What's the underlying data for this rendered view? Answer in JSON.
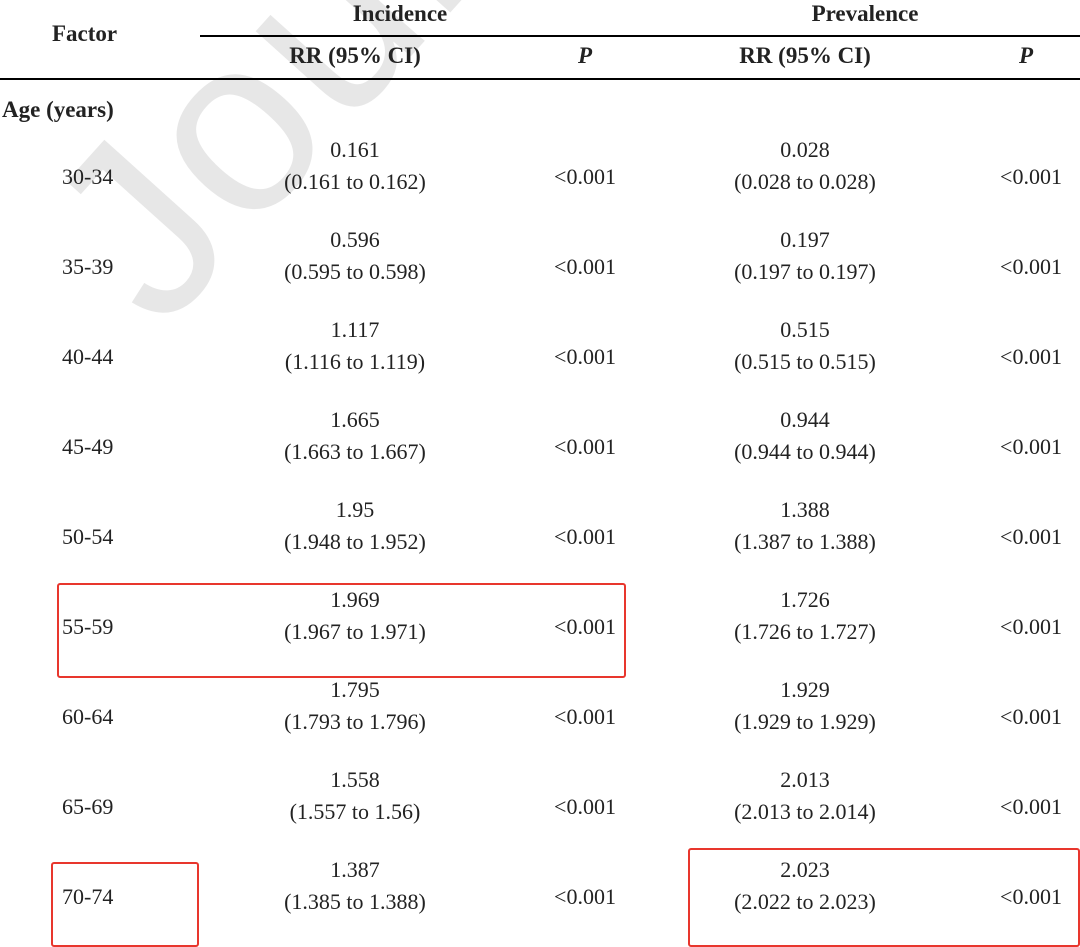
{
  "watermark": "Journal Pre-proof",
  "table": {
    "headers": {
      "factor": "Factor",
      "incidence": "Incidence",
      "prevalence": "Prevalence",
      "rr_ci": "RR (95% CI)",
      "p": "P"
    },
    "section": "Age (years)",
    "rows": [
      {
        "factor": "30-34",
        "inc_rr": "0.161",
        "inc_ci": "(0.161 to 0.162)",
        "inc_p": "<0.001",
        "prev_rr": "0.028",
        "prev_ci": "(0.028 to 0.028)",
        "prev_p": "<0.001"
      },
      {
        "factor": "35-39",
        "inc_rr": "0.596",
        "inc_ci": "(0.595 to 0.598)",
        "inc_p": "<0.001",
        "prev_rr": "0.197",
        "prev_ci": "(0.197 to 0.197)",
        "prev_p": "<0.001"
      },
      {
        "factor": "40-44",
        "inc_rr": "1.117",
        "inc_ci": "(1.116 to 1.119)",
        "inc_p": "<0.001",
        "prev_rr": "0.515",
        "prev_ci": "(0.515 to 0.515)",
        "prev_p": "<0.001"
      },
      {
        "factor": "45-49",
        "inc_rr": "1.665",
        "inc_ci": "(1.663 to 1.667)",
        "inc_p": "<0.001",
        "prev_rr": "0.944",
        "prev_ci": "(0.944 to 0.944)",
        "prev_p": "<0.001"
      },
      {
        "factor": "50-54",
        "inc_rr": "1.95",
        "inc_ci": "(1.948 to 1.952)",
        "inc_p": "<0.001",
        "prev_rr": "1.388",
        "prev_ci": "(1.387 to 1.388)",
        "prev_p": "<0.001"
      },
      {
        "factor": "55-59",
        "inc_rr": "1.969",
        "inc_ci": "(1.967 to 1.971)",
        "inc_p": "<0.001",
        "prev_rr": "1.726",
        "prev_ci": "(1.726 to 1.727)",
        "prev_p": "<0.001"
      },
      {
        "factor": "60-64",
        "inc_rr": "1.795",
        "inc_ci": "(1.793 to 1.796)",
        "inc_p": "<0.001",
        "prev_rr": "1.929",
        "prev_ci": "(1.929 to 1.929)",
        "prev_p": "<0.001"
      },
      {
        "factor": "65-69",
        "inc_rr": "1.558",
        "inc_ci": "(1.557 to 1.56)",
        "inc_p": "<0.001",
        "prev_rr": "2.013",
        "prev_ci": "(2.013 to 2.014)",
        "prev_p": "<0.001"
      },
      {
        "factor": "70-74",
        "inc_rr": "1.387",
        "inc_ci": "(1.385 to 1.388)",
        "inc_p": "<0.001",
        "prev_rr": "2.023",
        "prev_ci": "(2.022 to 2.023)",
        "prev_p": "<0.001"
      }
    ]
  },
  "highlight_color": "#e8362d"
}
